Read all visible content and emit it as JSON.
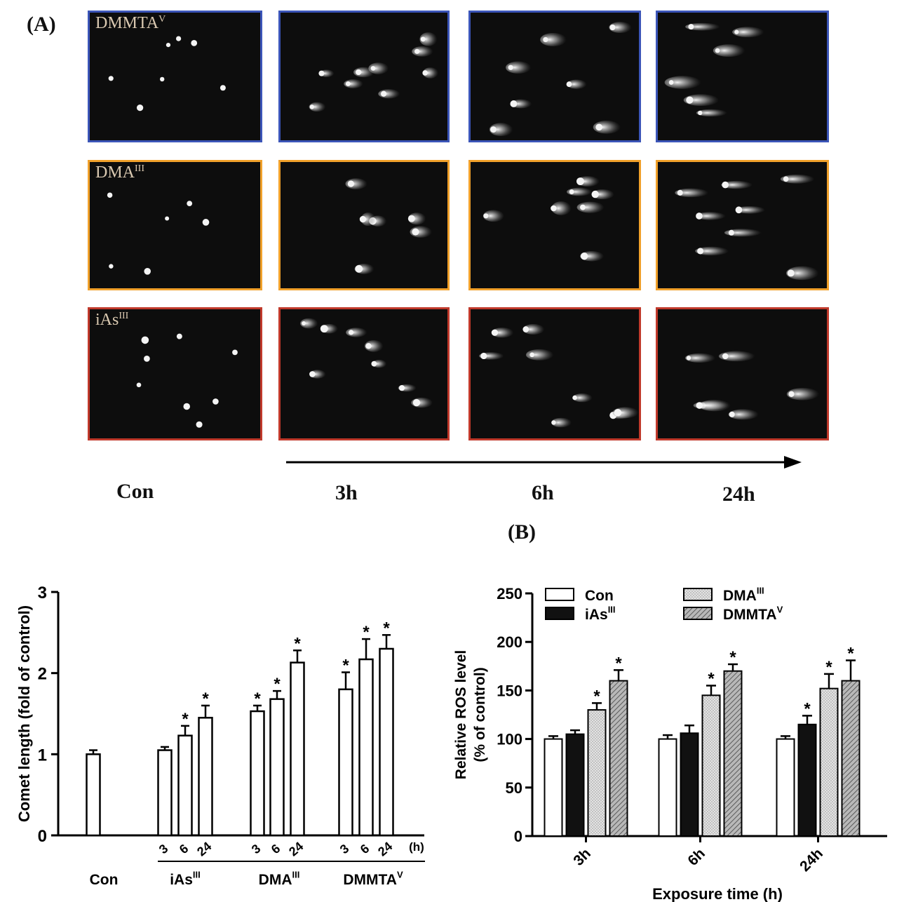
{
  "panel_a": {
    "label": "(A)",
    "rows": [
      {
        "name": "DMMTA",
        "sup": "V",
        "border": "#3b55b8",
        "cells": [
          "con",
          "3h",
          "6h",
          "24h"
        ]
      },
      {
        "name": "DMA",
        "sup": "III",
        "border": "#f0a02a",
        "cells": [
          "con",
          "3h",
          "6h",
          "24h"
        ]
      },
      {
        "name": "iAs",
        "sup": "III",
        "border": "#c0392b",
        "cells": [
          "con",
          "3h",
          "6h",
          "24h"
        ]
      }
    ],
    "columns": [
      "Con",
      "3h",
      "6h",
      "24h"
    ]
  },
  "panel_b": {
    "label": "(B)"
  },
  "chart_data": [
    {
      "type": "bar",
      "ylabel": "Comet length (fold of control)",
      "ylim": [
        0,
        3
      ],
      "yticks": [
        0,
        1,
        2,
        3
      ],
      "x_unit": "(h)",
      "groups": [
        {
          "name": "Con",
          "sup": "",
          "bars": [
            {
              "x": "",
              "value": 1.0,
              "err": 0.05,
              "sig": false
            }
          ]
        },
        {
          "name": "iAs",
          "sup": "III",
          "bars": [
            {
              "x": "3",
              "value": 1.05,
              "err": 0.04,
              "sig": false
            },
            {
              "x": "6",
              "value": 1.23,
              "err": 0.12,
              "sig": true
            },
            {
              "x": "24",
              "value": 1.45,
              "err": 0.15,
              "sig": true
            }
          ]
        },
        {
          "name": "DMA",
          "sup": "III",
          "bars": [
            {
              "x": "3",
              "value": 1.53,
              "err": 0.07,
              "sig": true
            },
            {
              "x": "6",
              "value": 1.68,
              "err": 0.1,
              "sig": true
            },
            {
              "x": "24",
              "value": 2.13,
              "err": 0.15,
              "sig": true
            }
          ]
        },
        {
          "name": "DMMTA",
          "sup": "V",
          "bars": [
            {
              "x": "3",
              "value": 1.8,
              "err": 0.21,
              "sig": true
            },
            {
              "x": "6",
              "value": 2.17,
              "err": 0.25,
              "sig": true
            },
            {
              "x": "24",
              "value": 2.3,
              "err": 0.17,
              "sig": true
            }
          ]
        }
      ]
    },
    {
      "type": "bar",
      "ylabel": "Relative ROS level (% of control)",
      "xlabel": "Exposure time (h)",
      "ylim": [
        0,
        250
      ],
      "yticks": [
        0,
        50,
        100,
        150,
        200,
        250
      ],
      "categories": [
        "3h",
        "6h",
        "24h"
      ],
      "legend_placement": "top",
      "series": [
        {
          "name": "Con",
          "sup": "",
          "fill": "white",
          "values": [
            100,
            100,
            100
          ],
          "err": [
            3,
            4,
            3
          ],
          "sig": [
            false,
            false,
            false
          ]
        },
        {
          "name": "iAs",
          "sup": "III",
          "fill": "black",
          "values": [
            105,
            106,
            115
          ],
          "err": [
            4,
            8,
            9
          ],
          "sig": [
            false,
            false,
            true
          ]
        },
        {
          "name": "DMA",
          "sup": "III",
          "fill": "lightdots",
          "values": [
            130,
            145,
            152
          ],
          "err": [
            7,
            10,
            15
          ],
          "sig": [
            true,
            true,
            true
          ]
        },
        {
          "name": "DMMTA",
          "sup": "V",
          "fill": "hatch",
          "values": [
            160,
            170,
            160
          ],
          "err": [
            11,
            7,
            21
          ],
          "sig": [
            true,
            true,
            true
          ]
        }
      ]
    }
  ]
}
